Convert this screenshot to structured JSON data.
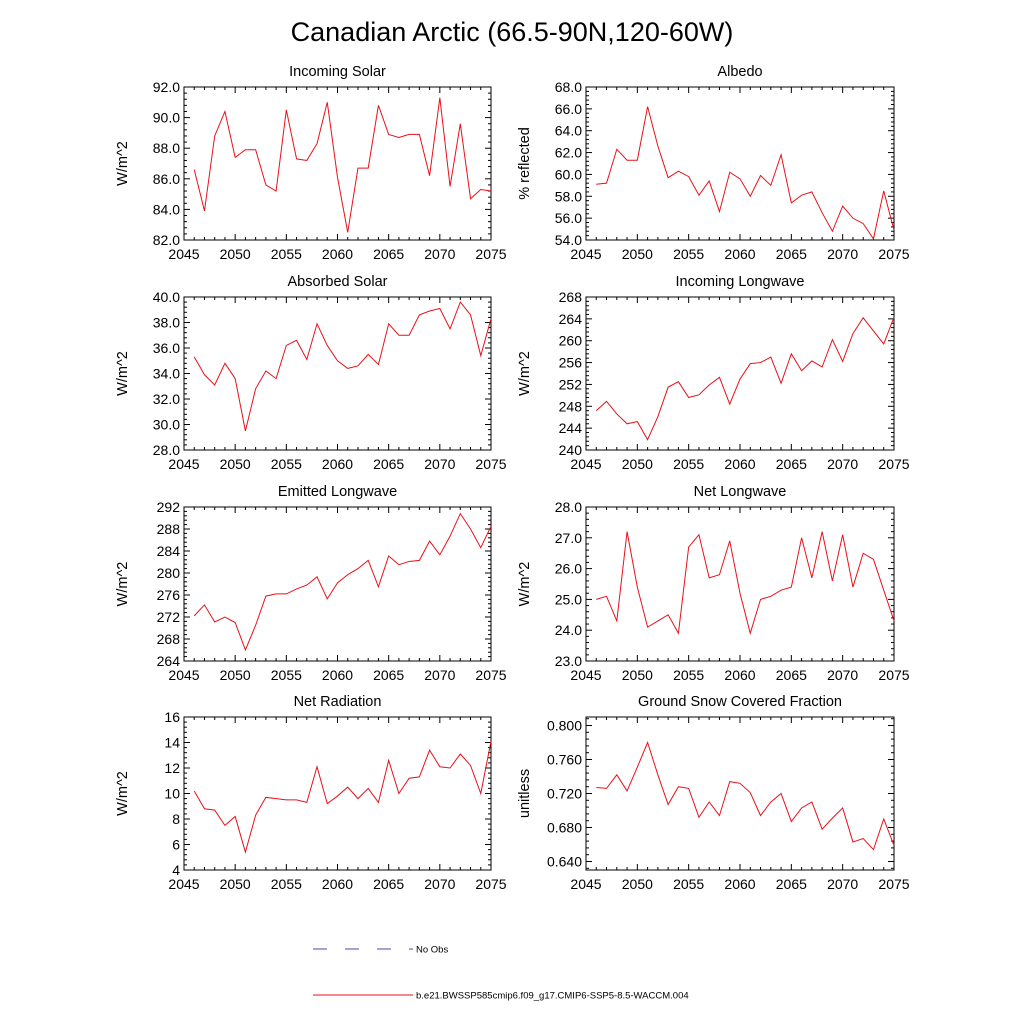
{
  "figure": {
    "title": "Canadian Arctic (66.5-90N,120-60W)"
  },
  "chart_data": [
    {
      "type": "line",
      "title": "Incoming Solar",
      "xlabel": "",
      "ylabel": "W/m^2",
      "xlim": [
        2045,
        2075
      ],
      "ylim": [
        82,
        92
      ],
      "xticks": [
        2045,
        2050,
        2055,
        2060,
        2065,
        2070,
        2075
      ],
      "yticks": [
        82,
        84,
        86,
        88,
        90,
        92
      ],
      "ytick_labels": [
        "82.0",
        "84.0",
        "86.0",
        "88.0",
        "90.0",
        "92.0"
      ],
      "grid": false,
      "series": [
        {
          "name": "b.e21.BWSSP585cmip6.f09_g17.CMIP6-SSP5-8.5-WACCM.004",
          "color": "#e8111a",
          "x": [
            2046,
            2047,
            2048,
            2049,
            2050,
            2051,
            2052,
            2053,
            2054,
            2055,
            2056,
            2057,
            2058,
            2059,
            2060,
            2061,
            2062,
            2063,
            2064,
            2065,
            2066,
            2067,
            2068,
            2069,
            2070,
            2071,
            2072,
            2073,
            2074,
            2075
          ],
          "values": [
            86.6,
            83.9,
            88.8,
            90.4,
            87.4,
            87.9,
            87.9,
            85.6,
            85.2,
            90.5,
            87.3,
            87.2,
            88.3,
            91.0,
            86.1,
            82.5,
            86.7,
            86.7,
            90.8,
            88.9,
            88.7,
            88.9,
            88.9,
            86.2,
            91.3,
            85.5,
            89.6,
            84.7,
            85.3,
            85.2
          ]
        }
      ]
    },
    {
      "type": "line",
      "title": "Albedo",
      "xlabel": "",
      "ylabel": "% reflected",
      "xlim": [
        2045,
        2075
      ],
      "ylim": [
        54,
        68
      ],
      "xticks": [
        2045,
        2050,
        2055,
        2060,
        2065,
        2070,
        2075
      ],
      "yticks": [
        54,
        56,
        58,
        60,
        62,
        64,
        66,
        68
      ],
      "ytick_labels": [
        "54.0",
        "56.0",
        "58.0",
        "60.0",
        "62.0",
        "64.0",
        "66.0",
        "68.0"
      ],
      "grid": false,
      "series": [
        {
          "name": "b.e21.BWSSP585cmip6.f09_g17.CMIP6-SSP5-8.5-WACCM.004",
          "color": "#e8111a",
          "x": [
            2046,
            2047,
            2048,
            2049,
            2050,
            2051,
            2052,
            2053,
            2054,
            2055,
            2056,
            2057,
            2058,
            2059,
            2060,
            2061,
            2062,
            2063,
            2064,
            2065,
            2066,
            2067,
            2068,
            2069,
            2070,
            2071,
            2072,
            2073,
            2074,
            2075
          ],
          "values": [
            59.1,
            59.2,
            62.3,
            61.3,
            61.3,
            66.2,
            62.6,
            59.7,
            60.3,
            59.8,
            58.1,
            59.4,
            56.6,
            60.2,
            59.6,
            58.0,
            59.9,
            59.0,
            61.8,
            57.4,
            58.1,
            58.4,
            56.5,
            54.8,
            57.1,
            56.0,
            55.5,
            54.1,
            58.5,
            54.9
          ]
        }
      ]
    },
    {
      "type": "line",
      "title": "Absorbed Solar",
      "xlabel": "",
      "ylabel": "W/m^2",
      "xlim": [
        2045,
        2075
      ],
      "ylim": [
        28,
        40
      ],
      "xticks": [
        2045,
        2050,
        2055,
        2060,
        2065,
        2070,
        2075
      ],
      "yticks": [
        28,
        30,
        32,
        34,
        36,
        38,
        40
      ],
      "ytick_labels": [
        "28.0",
        "30.0",
        "32.0",
        "34.0",
        "36.0",
        "38.0",
        "40.0"
      ],
      "grid": false,
      "series": [
        {
          "name": "b.e21.BWSSP585cmip6.f09_g17.CMIP6-SSP5-8.5-WACCM.004",
          "color": "#e8111a",
          "x": [
            2046,
            2047,
            2048,
            2049,
            2050,
            2051,
            2052,
            2053,
            2054,
            2055,
            2056,
            2057,
            2058,
            2059,
            2060,
            2061,
            2062,
            2063,
            2064,
            2065,
            2066,
            2067,
            2068,
            2069,
            2070,
            2071,
            2072,
            2073,
            2074,
            2075
          ],
          "values": [
            35.3,
            33.9,
            33.1,
            34.8,
            33.6,
            29.5,
            32.8,
            34.2,
            33.6,
            36.2,
            36.6,
            35.1,
            37.9,
            36.2,
            35.0,
            34.4,
            34.6,
            35.5,
            34.7,
            37.9,
            37.0,
            37.0,
            38.6,
            38.9,
            39.1,
            37.5,
            39.6,
            38.6,
            35.4,
            38.3
          ]
        }
      ]
    },
    {
      "type": "line",
      "title": "Incoming Longwave",
      "xlabel": "",
      "ylabel": "W/m^2",
      "xlim": [
        2045,
        2075
      ],
      "ylim": [
        240,
        268
      ],
      "xticks": [
        2045,
        2050,
        2055,
        2060,
        2065,
        2070,
        2075
      ],
      "yticks": [
        240,
        244,
        248,
        252,
        256,
        260,
        264,
        268
      ],
      "ytick_labels": [
        "240",
        "244",
        "248",
        "252",
        "256",
        "260",
        "264",
        "268"
      ],
      "grid": false,
      "series": [
        {
          "name": "b.e21.BWSSP585cmip6.f09_g17.CMIP6-SSP5-8.5-WACCM.004",
          "color": "#e8111a",
          "x": [
            2046,
            2047,
            2048,
            2049,
            2050,
            2051,
            2052,
            2053,
            2054,
            2055,
            2056,
            2057,
            2058,
            2059,
            2060,
            2061,
            2062,
            2063,
            2064,
            2065,
            2066,
            2067,
            2068,
            2069,
            2070,
            2071,
            2072,
            2073,
            2074,
            2075
          ],
          "values": [
            247.2,
            248.9,
            246.6,
            244.8,
            245.2,
            241.9,
            246.1,
            251.5,
            252.5,
            249.6,
            250.1,
            251.9,
            253.3,
            248.4,
            253.0,
            255.8,
            256.0,
            257.0,
            252.2,
            257.6,
            254.5,
            256.3,
            255.2,
            260.2,
            256.2,
            261.3,
            264.2,
            261.8,
            259.4,
            264.3
          ]
        }
      ]
    },
    {
      "type": "line",
      "title": "Emitted Longwave",
      "xlabel": "",
      "ylabel": "W/m^2",
      "xlim": [
        2045,
        2075
      ],
      "ylim": [
        264,
        292
      ],
      "xticks": [
        2045,
        2050,
        2055,
        2060,
        2065,
        2070,
        2075
      ],
      "yticks": [
        264,
        268,
        272,
        276,
        280,
        284,
        288,
        292
      ],
      "ytick_labels": [
        "264",
        "268",
        "272",
        "276",
        "280",
        "284",
        "288",
        "292"
      ],
      "grid": false,
      "series": [
        {
          "name": "b.e21.BWSSP585cmip6.f09_g17.CMIP6-SSP5-8.5-WACCM.004",
          "color": "#e8111a",
          "x": [
            2046,
            2047,
            2048,
            2049,
            2050,
            2051,
            2052,
            2053,
            2054,
            2055,
            2056,
            2057,
            2058,
            2059,
            2060,
            2061,
            2062,
            2063,
            2064,
            2065,
            2066,
            2067,
            2068,
            2069,
            2070,
            2071,
            2072,
            2073,
            2074,
            2075
          ],
          "values": [
            272.2,
            274.2,
            271.1,
            272.0,
            271.0,
            266.0,
            270.5,
            275.8,
            276.2,
            276.2,
            277.1,
            277.8,
            279.3,
            275.3,
            278.2,
            279.7,
            280.8,
            282.3,
            277.5,
            283.1,
            281.5,
            282.1,
            282.3,
            285.8,
            283.3,
            286.7,
            290.8,
            288.0,
            284.6,
            288.5
          ]
        }
      ]
    },
    {
      "type": "line",
      "title": "Net Longwave",
      "xlabel": "",
      "ylabel": "W/m^2",
      "xlim": [
        2045,
        2075
      ],
      "ylim": [
        23,
        28
      ],
      "xticks": [
        2045,
        2050,
        2055,
        2060,
        2065,
        2070,
        2075
      ],
      "yticks": [
        23,
        24,
        25,
        26,
        27,
        28
      ],
      "ytick_labels": [
        "23.0",
        "24.0",
        "25.0",
        "26.0",
        "27.0",
        "28.0"
      ],
      "grid": false,
      "series": [
        {
          "name": "b.e21.BWSSP585cmip6.f09_g17.CMIP6-SSP5-8.5-WACCM.004",
          "color": "#e8111a",
          "x": [
            2046,
            2047,
            2048,
            2049,
            2050,
            2051,
            2052,
            2053,
            2054,
            2055,
            2056,
            2057,
            2058,
            2059,
            2060,
            2061,
            2062,
            2063,
            2064,
            2065,
            2066,
            2067,
            2068,
            2069,
            2070,
            2071,
            2072,
            2073,
            2074,
            2075
          ],
          "values": [
            25.0,
            25.1,
            24.3,
            27.2,
            25.4,
            24.1,
            24.3,
            24.5,
            23.9,
            26.7,
            27.1,
            25.7,
            25.8,
            26.9,
            25.2,
            23.9,
            25.0,
            25.1,
            25.3,
            25.4,
            27.0,
            25.7,
            27.2,
            25.6,
            27.1,
            25.4,
            26.5,
            26.3,
            25.3,
            24.3
          ]
        }
      ]
    },
    {
      "type": "line",
      "title": "Net Radiation",
      "xlabel": "",
      "ylabel": "W/m^2",
      "xlim": [
        2045,
        2075
      ],
      "ylim": [
        4,
        16
      ],
      "xticks": [
        2045,
        2050,
        2055,
        2060,
        2065,
        2070,
        2075
      ],
      "yticks": [
        4,
        6,
        8,
        10,
        12,
        14,
        16
      ],
      "ytick_labels": [
        "4",
        "6",
        "8",
        "10",
        "12",
        "14",
        "16"
      ],
      "grid": false,
      "series": [
        {
          "name": "b.e21.BWSSP585cmip6.f09_g17.CMIP6-SSP5-8.5-WACCM.004",
          "color": "#e8111a",
          "x": [
            2046,
            2047,
            2048,
            2049,
            2050,
            2051,
            2052,
            2053,
            2054,
            2055,
            2056,
            2057,
            2058,
            2059,
            2060,
            2061,
            2062,
            2063,
            2064,
            2065,
            2066,
            2067,
            2068,
            2069,
            2070,
            2071,
            2072,
            2073,
            2074,
            2075
          ],
          "values": [
            10.2,
            8.8,
            8.7,
            7.5,
            8.2,
            5.4,
            8.3,
            9.7,
            9.6,
            9.5,
            9.5,
            9.3,
            12.1,
            9.2,
            9.8,
            10.5,
            9.6,
            10.4,
            9.3,
            12.6,
            10.0,
            11.2,
            11.3,
            13.4,
            12.1,
            12.0,
            13.1,
            12.2,
            10.0,
            14.1
          ]
        }
      ]
    },
    {
      "type": "line",
      "title": "Ground Snow Covered Fraction",
      "xlabel": "",
      "ylabel": "unitless",
      "xlim": [
        2045,
        2075
      ],
      "ylim": [
        0.63,
        0.81
      ],
      "xticks": [
        2045,
        2050,
        2055,
        2060,
        2065,
        2070,
        2075
      ],
      "yticks": [
        0.64,
        0.68,
        0.72,
        0.76,
        0.8
      ],
      "ytick_labels": [
        "0.640",
        "0.680",
        "0.720",
        "0.760",
        "0.800"
      ],
      "grid": false,
      "series": [
        {
          "name": "b.e21.BWSSP585cmip6.f09_g17.CMIP6-SSP5-8.5-WACCM.004",
          "color": "#e8111a",
          "x": [
            2046,
            2047,
            2048,
            2049,
            2050,
            2051,
            2052,
            2053,
            2054,
            2055,
            2056,
            2057,
            2058,
            2059,
            2060,
            2061,
            2062,
            2063,
            2064,
            2065,
            2066,
            2067,
            2068,
            2069,
            2070,
            2071,
            2072,
            2073,
            2074,
            2075
          ],
          "values": [
            0.727,
            0.726,
            0.742,
            0.723,
            0.751,
            0.78,
            0.742,
            0.707,
            0.728,
            0.726,
            0.692,
            0.71,
            0.694,
            0.734,
            0.732,
            0.721,
            0.694,
            0.71,
            0.72,
            0.687,
            0.703,
            0.71,
            0.678,
            0.691,
            0.703,
            0.663,
            0.667,
            0.654,
            0.69,
            0.659
          ]
        }
      ]
    }
  ],
  "legend": {
    "placement": "bottom-center",
    "entries": [
      {
        "label": "No Obs",
        "color": "#4a4aa8",
        "style": "dashed"
      },
      {
        "label": "b.e21.BWSSP585cmip6.f09_g17.CMIP6-SSP5-8.5-WACCM.004",
        "color": "#e8111a",
        "style": "solid"
      }
    ]
  }
}
